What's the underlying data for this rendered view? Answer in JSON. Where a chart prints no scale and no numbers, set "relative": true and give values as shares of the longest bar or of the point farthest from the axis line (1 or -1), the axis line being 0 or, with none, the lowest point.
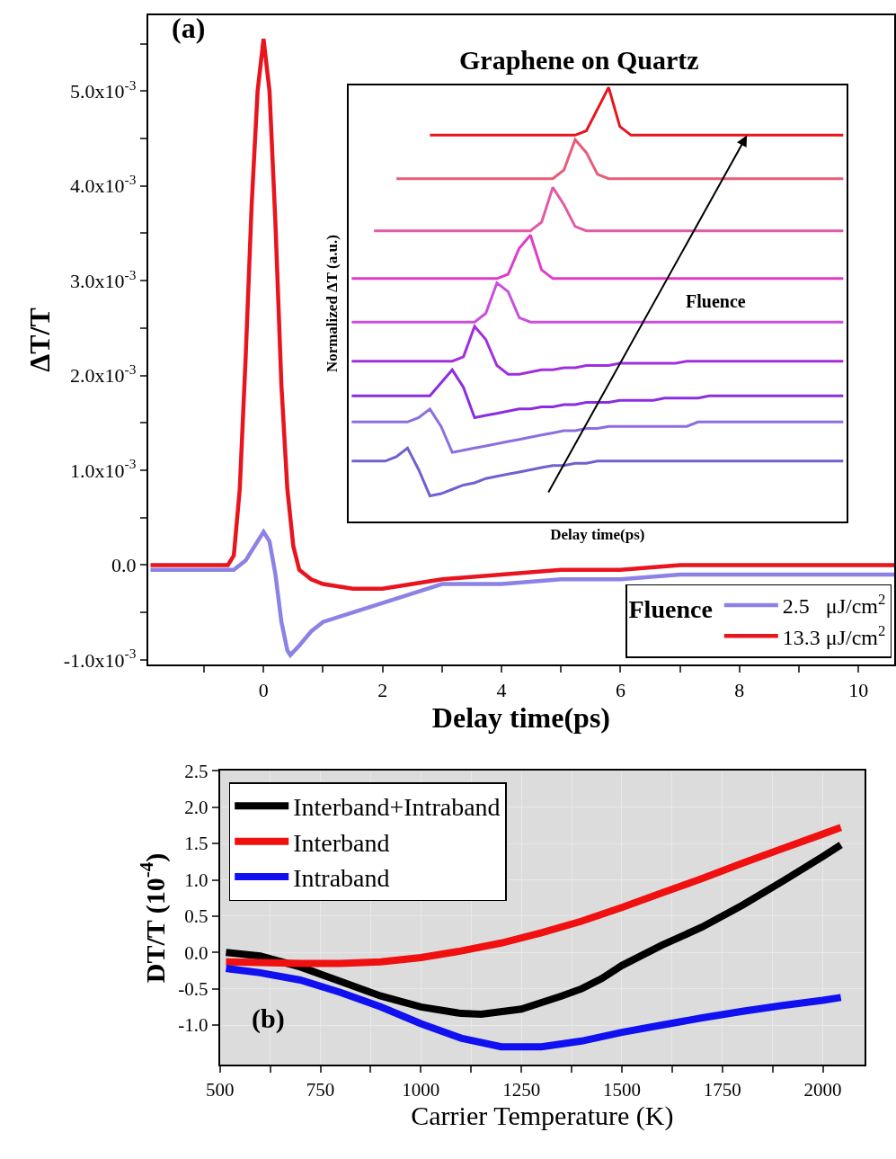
{
  "chart_data": [
    {
      "type": "line",
      "xlabel": "Delay time(ps)",
      "ylabel": "ΔT/T",
      "legend_title": "Fluence",
      "legend": "bottom right",
      "grid": false,
      "marker": "none",
      "line_style": "solid",
      "xlim": [
        -1.94,
        10.6
      ],
      "xticks": [
        {
          "value": -1,
          "label": null
        },
        0,
        {
          "value": 1,
          "label": null
        },
        2,
        {
          "value": 3,
          "label": null
        },
        4,
        {
          "value": 5,
          "label": null
        },
        6,
        {
          "value": 7,
          "label": null
        },
        8,
        {
          "value": 9,
          "label": null
        },
        10
      ],
      "ylim": [
        -0.00105,
        0.0058
      ],
      "yticks": [
        {
          "value": -0.001,
          "label": "-1.0x10$^{-3}$"
        },
        {
          "value": -0.0005,
          "label": null
        },
        {
          "value": 0,
          "label": "0.0"
        },
        {
          "value": 0.0005,
          "label": null
        },
        {
          "value": 0.001,
          "label": "1.0x10$^{-3}$"
        },
        {
          "value": 0.0015,
          "label": null
        },
        {
          "value": 0.002,
          "label": "2.0x10$^{-3}$"
        },
        {
          "value": 0.0025,
          "label": null
        },
        {
          "value": 0.003,
          "label": "3.0x10$^{-3}$"
        },
        {
          "value": 0.0035,
          "label": null
        },
        {
          "value": 0.004,
          "label": "4.0x10$^{-3}$"
        },
        {
          "value": 0.0045,
          "label": null
        },
        {
          "value": 0.005,
          "label": "5.0x10$^{-3}$"
        },
        {
          "value": 0.0055,
          "label": null
        }
      ],
      "annotations": [
        "(a)"
      ],
      "series": [
        {
          "name": "2.5   μJ/cm$^{2}$",
          "color": "#8c82e6",
          "x": [
            -1.9,
            -1,
            -0.5,
            -0.3,
            -0.15,
            0,
            0.1,
            0.2,
            0.3,
            0.4,
            0.45,
            0.6,
            0.8,
            1,
            1.5,
            2,
            2.5,
            3,
            3.5,
            4,
            5,
            6,
            7,
            8,
            10,
            10.6
          ],
          "values": [
            -5e-05,
            -5e-05,
            -5e-05,
            5e-05,
            0.0002,
            0.00035,
            0.00025,
            -0.0001,
            -0.0006,
            -0.0009,
            -0.00095,
            -0.00085,
            -0.0007,
            -0.0006,
            -0.0005,
            -0.0004,
            -0.0003,
            -0.0002,
            -0.0002,
            -0.0002,
            -0.00015,
            -0.00015,
            -0.0001,
            -0.0001,
            -0.0001,
            -0.0001
          ]
        },
        {
          "name": "13.3 μJ/cm$^{2}$",
          "color": "#e8141e",
          "x": [
            -1.9,
            -1,
            -0.6,
            -0.5,
            -0.4,
            -0.3,
            -0.2,
            -0.1,
            0,
            0.1,
            0.2,
            0.3,
            0.4,
            0.5,
            0.6,
            0.8,
            1,
            1.5,
            2,
            2.5,
            3,
            4,
            5,
            6,
            7,
            8,
            9,
            10,
            10.6
          ],
          "values": [
            0,
            0,
            0,
            0.0001,
            0.0008,
            0.0022,
            0.0038,
            0.005,
            0.00555,
            0.005,
            0.0036,
            0.0019,
            0.0008,
            0.0002,
            -5e-05,
            -0.00015,
            -0.0002,
            -0.00025,
            -0.00025,
            -0.0002,
            -0.00015,
            -0.0001,
            -5e-05,
            -5e-05,
            0,
            0,
            0,
            0,
            0
          ]
        }
      ]
    },
    {
      "type": "line",
      "title": "Graphene on Quartz",
      "xlabel": "Delay time(ps)",
      "ylabel": "Normalized ΔT (a.u.)",
      "relative": true,
      "marker": "none",
      "line_style": "solid",
      "annotations": [
        "Fluence"
      ],
      "categories": [
        null,
        null,
        null,
        null,
        null,
        null,
        null,
        null,
        null,
        null,
        null,
        null,
        null,
        null,
        null,
        null,
        null,
        null,
        null,
        null,
        null,
        null,
        null,
        null,
        null,
        null,
        null,
        null,
        null,
        null,
        null,
        null,
        null,
        null,
        null,
        null,
        null,
        null,
        null,
        null,
        null,
        null,
        null,
        null,
        null
      ],
      "series": [
        {
          "color": "#7060d0",
          "values": [
            0.14,
            0.14,
            0.14,
            0.14,
            0.15,
            0.17,
            0.12,
            0.06,
            0.065,
            0.075,
            0.085,
            0.09,
            0.1,
            0.105,
            0.11,
            0.115,
            0.12,
            0.125,
            0.13,
            0.13,
            0.135,
            0.135,
            0.14,
            0.14,
            0.14,
            0.14,
            0.14,
            0.14,
            0.14,
            0.14,
            0.14,
            0.14,
            0.14,
            0.14,
            0.14,
            0.14,
            0.14,
            0.14,
            0.14,
            0.14,
            0.14,
            0.14,
            0.14,
            0.14,
            0.14
          ]
        },
        {
          "color": "#8c6ee0",
          "values": [
            0.23,
            0.23,
            0.23,
            0.23,
            0.23,
            0.23,
            0.24,
            0.26,
            0.22,
            0.16,
            0.165,
            0.17,
            0.175,
            0.18,
            0.185,
            0.19,
            0.195,
            0.2,
            0.205,
            0.21,
            0.21,
            0.215,
            0.215,
            0.22,
            0.22,
            0.22,
            0.22,
            0.22,
            0.22,
            0.22,
            0.22,
            0.23,
            0.23,
            0.23,
            0.23,
            0.23,
            0.23,
            0.23,
            0.23,
            0.23,
            0.23,
            0.23,
            0.23,
            0.23,
            0.23
          ]
        },
        {
          "color": "#8a2ee0",
          "values": [
            0.29,
            0.29,
            0.29,
            0.29,
            0.29,
            0.29,
            0.29,
            0.29,
            0.32,
            0.35,
            0.31,
            0.24,
            0.245,
            0.25,
            0.255,
            0.26,
            0.26,
            0.265,
            0.265,
            0.27,
            0.27,
            0.275,
            0.275,
            0.275,
            0.28,
            0.28,
            0.28,
            0.28,
            0.285,
            0.285,
            0.285,
            0.285,
            0.29,
            0.29,
            0.29,
            0.29,
            0.29,
            0.29,
            0.29,
            0.29,
            0.29,
            0.29,
            0.29,
            0.29,
            0.29
          ]
        },
        {
          "color": "#a030dc",
          "values": [
            0.37,
            0.37,
            0.37,
            0.37,
            0.37,
            0.37,
            0.37,
            0.37,
            0.37,
            0.37,
            0.38,
            0.45,
            0.42,
            0.36,
            0.34,
            0.34,
            0.345,
            0.35,
            0.35,
            0.355,
            0.355,
            0.36,
            0.36,
            0.36,
            0.365,
            0.365,
            0.365,
            0.365,
            0.365,
            0.365,
            0.37,
            0.37,
            0.37,
            0.37,
            0.37,
            0.37,
            0.37,
            0.37,
            0.37,
            0.37,
            0.37,
            0.37,
            0.37,
            0.37,
            0.37
          ]
        },
        {
          "color": "#c850dc",
          "values": [
            0.46,
            0.46,
            0.46,
            0.46,
            0.46,
            0.46,
            0.46,
            0.46,
            0.46,
            0.46,
            0.46,
            0.46,
            0.48,
            0.55,
            0.53,
            0.47,
            0.46,
            0.46,
            0.46,
            0.46,
            0.46,
            0.46,
            0.46,
            0.46,
            0.46,
            0.46,
            0.46,
            0.46,
            0.46,
            0.46,
            0.46,
            0.46,
            0.46,
            0.46,
            0.46,
            0.46,
            0.46,
            0.46,
            0.46,
            0.46,
            0.46,
            0.46,
            0.46,
            0.46,
            0.46
          ]
        },
        {
          "color": "#e03cc8",
          "values": [
            0.56,
            0.56,
            0.56,
            0.56,
            0.56,
            0.56,
            0.56,
            0.56,
            0.56,
            0.56,
            0.56,
            0.56,
            0.56,
            0.56,
            0.57,
            0.63,
            0.66,
            0.58,
            0.56,
            0.56,
            0.56,
            0.56,
            0.56,
            0.56,
            0.56,
            0.56,
            0.56,
            0.56,
            0.56,
            0.56,
            0.56,
            0.56,
            0.56,
            0.56,
            0.56,
            0.56,
            0.56,
            0.56,
            0.56,
            0.56,
            0.56,
            0.56,
            0.56,
            0.56,
            0.56
          ]
        },
        {
          "color": "#e05aa8",
          "values": [
            null,
            null,
            0.67,
            0.67,
            0.67,
            0.67,
            0.67,
            0.67,
            0.67,
            0.67,
            0.67,
            0.67,
            0.67,
            0.67,
            0.67,
            0.67,
            0.67,
            0.69,
            0.77,
            0.73,
            0.68,
            0.67,
            0.67,
            0.67,
            0.67,
            0.67,
            0.67,
            0.67,
            0.67,
            0.67,
            0.67,
            0.67,
            0.67,
            0.67,
            0.67,
            0.67,
            0.67,
            0.67,
            0.67,
            0.67,
            0.67,
            0.67,
            0.67,
            0.67,
            0.67
          ]
        },
        {
          "color": "#e85c78",
          "values": [
            null,
            null,
            null,
            null,
            0.79,
            0.79,
            0.79,
            0.79,
            0.79,
            0.79,
            0.79,
            0.79,
            0.79,
            0.79,
            0.79,
            0.79,
            0.79,
            0.79,
            0.79,
            0.81,
            0.88,
            0.85,
            0.8,
            0.79,
            0.79,
            0.79,
            0.79,
            0.79,
            0.79,
            0.79,
            0.79,
            0.79,
            0.79,
            0.79,
            0.79,
            0.79,
            0.79,
            0.79,
            0.79,
            0.79,
            0.79,
            0.79,
            0.79,
            0.79,
            0.79
          ]
        },
        {
          "color": "#e8141e",
          "values": [
            null,
            null,
            null,
            null,
            null,
            null,
            null,
            0.89,
            0.89,
            0.89,
            0.89,
            0.89,
            0.89,
            0.89,
            0.89,
            0.89,
            0.89,
            0.89,
            0.89,
            0.89,
            0.89,
            0.9,
            0.95,
            1.0,
            0.91,
            0.89,
            0.89,
            0.89,
            0.89,
            0.89,
            0.89,
            0.89,
            0.89,
            0.89,
            0.89,
            0.89,
            0.89,
            0.89,
            0.89,
            0.89,
            0.89,
            0.89,
            0.89,
            0.89,
            0.89
          ]
        }
      ]
    },
    {
      "type": "line",
      "xlabel": "Carrier Temperature (K)",
      "ylabel": "DT/T (10$^{-4}$)",
      "legend": "top left",
      "grid": true,
      "marker": "none",
      "line_style": "solid",
      "annotations": [
        "(b)"
      ],
      "xlim": [
        500,
        2104
      ],
      "xticks": [
        500,
        {
          "value": 625,
          "label": null
        },
        750,
        {
          "value": 875,
          "label": null
        },
        1000,
        {
          "value": 1125,
          "label": null
        },
        1250,
        {
          "value": 1375,
          "label": null
        },
        1500,
        {
          "value": 1625,
          "label": null
        },
        1750,
        {
          "value": 1875,
          "label": null
        },
        2000
      ],
      "ylim": [
        -1.55,
        2.5
      ],
      "yticks": [
        {
          "value": -1,
          "label": "-1.0"
        },
        -0.5,
        {
          "value": 0,
          "label": "0.0"
        },
        0.5,
        {
          "value": 1,
          "label": "1.0"
        },
        1.5,
        {
          "value": 2,
          "label": "2.0"
        },
        2.5
      ],
      "series": [
        {
          "name": "Interband+Intraband",
          "color": "#000000",
          "x": [
            515,
            600,
            700,
            800,
            900,
            1000,
            1100,
            1150,
            1250,
            1350,
            1400,
            1450,
            1500,
            1600,
            1700,
            1800,
            1900,
            2000,
            2045
          ],
          "values": [
            0.0,
            -0.05,
            -0.2,
            -0.4,
            -0.6,
            -0.75,
            -0.84,
            -0.85,
            -0.78,
            -0.6,
            -0.5,
            -0.36,
            -0.18,
            0.1,
            0.35,
            0.65,
            0.98,
            1.32,
            1.48
          ]
        },
        {
          "name": "Interband",
          "color": "#f01010",
          "x": [
            515,
            600,
            700,
            800,
            900,
            1000,
            1100,
            1200,
            1300,
            1400,
            1500,
            1600,
            1700,
            1800,
            1900,
            2000,
            2045
          ],
          "values": [
            -0.13,
            -0.14,
            -0.15,
            -0.15,
            -0.13,
            -0.07,
            0.02,
            0.13,
            0.27,
            0.43,
            0.62,
            0.82,
            1.02,
            1.23,
            1.43,
            1.63,
            1.72
          ]
        },
        {
          "name": "Intraband",
          "color": "#1010f0",
          "x": [
            515,
            600,
            700,
            800,
            900,
            1000,
            1100,
            1200,
            1300,
            1400,
            1500,
            1600,
            1700,
            1800,
            1900,
            2000,
            2045
          ],
          "values": [
            -0.22,
            -0.28,
            -0.38,
            -0.55,
            -0.75,
            -0.98,
            -1.18,
            -1.3,
            -1.3,
            -1.22,
            -1.1,
            -1.0,
            -0.9,
            -0.81,
            -0.73,
            -0.66,
            -0.62
          ]
        }
      ]
    }
  ]
}
